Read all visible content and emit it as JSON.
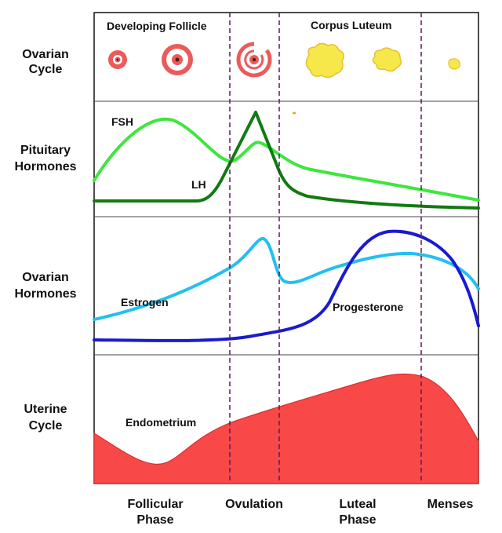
{
  "rows": {
    "ovarian_cycle": [
      "Ovarian",
      "Cycle"
    ],
    "pituitary": [
      "Pituitary",
      "Hormones"
    ],
    "ovarian_hormones": [
      "Ovarian",
      "Hormones"
    ],
    "uterine": [
      "Uterine",
      "Cycle"
    ]
  },
  "follicle_labels": {
    "developing": "Developing Follicle",
    "corpus_luteum": "Corpus Luteum"
  },
  "curve_labels": {
    "fsh": "FSH",
    "lh": "LH",
    "estrogen": "Estrogen",
    "progesterone": "Progesterone",
    "endometrium": "Endometrium"
  },
  "phases": {
    "follicular": [
      "Follicular",
      "Phase"
    ],
    "ovulation": "Ovulation",
    "luteal": [
      "Luteal",
      "Phase"
    ],
    "menses": "Menses"
  },
  "colors": {
    "fsh": "#3ee63e",
    "lh": "#127a12",
    "estrogen": "#22c0f0",
    "progesterone": "#1a1ad0",
    "endometrium": "#f84848",
    "follicle": "#ec5a5a",
    "corpus_luteum": "#f6e84a",
    "divider": "#5a1a5a"
  }
}
